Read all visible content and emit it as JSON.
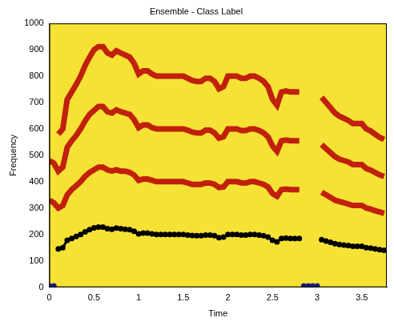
{
  "chart_data": {
    "type": "line",
    "title": "Ensemble - Class Label",
    "x_label": "Time",
    "y_label": "Frequency",
    "x": [
      0,
      0.05,
      0.1,
      0.15,
      0.2,
      0.25,
      0.3,
      0.35,
      0.4,
      0.45,
      0.5,
      0.55,
      0.6,
      0.65,
      0.7,
      0.75,
      0.8,
      0.85,
      0.9,
      0.95,
      1.0,
      1.05,
      1.1,
      1.15,
      1.2,
      1.25,
      1.3,
      1.35,
      1.4,
      1.45,
      1.5,
      1.55,
      1.6,
      1.65,
      1.7,
      1.75,
      1.8,
      1.85,
      1.9,
      1.95,
      2.0,
      2.05,
      2.1,
      2.15,
      2.2,
      2.25,
      2.3,
      2.35,
      2.4,
      2.45,
      2.5,
      2.55,
      2.6,
      2.65,
      2.7,
      2.75,
      2.8,
      2.85,
      2.9,
      2.95,
      3.0,
      3.05,
      3.1,
      3.15,
      3.2,
      3.25,
      3.3,
      3.35,
      3.4,
      3.45,
      3.5,
      3.55,
      3.6,
      3.65,
      3.7,
      3.75
    ],
    "series": [
      {
        "color": "#c0200c",
        "marker": "none",
        "line_style": "solid",
        "values": [
          330,
          320,
          300,
          310,
          350,
          370,
          385,
          400,
          420,
          435,
          445,
          455,
          455,
          445,
          440,
          445,
          440,
          440,
          435,
          425,
          405,
          410,
          410,
          405,
          400,
          400,
          400,
          400,
          400,
          400,
          400,
          395,
          390,
          390,
          390,
          395,
          395,
          390,
          378,
          380,
          400,
          400,
          400,
          396,
          395,
          400,
          400,
          395,
          390,
          380,
          355,
          345,
          370,
          372,
          370,
          370,
          370,
          null,
          null,
          null,
          null,
          360,
          350,
          340,
          330,
          325,
          320,
          315,
          310,
          310,
          310,
          300,
          296,
          290,
          285,
          280
        ]
      },
      {
        "color": "#c0200c",
        "marker": "none",
        "line_style": "solid",
        "values": [
          480,
          470,
          440,
          455,
          530,
          555,
          575,
          600,
          630,
          655,
          670,
          685,
          685,
          665,
          660,
          672,
          665,
          660,
          655,
          635,
          605,
          615,
          615,
          605,
          600,
          600,
          600,
          600,
          600,
          600,
          600,
          595,
          588,
          585,
          585,
          595,
          595,
          585,
          565,
          570,
          600,
          600,
          600,
          594,
          594,
          600,
          600,
          594,
          585,
          570,
          535,
          515,
          555,
          558,
          555,
          555,
          555,
          null,
          null,
          null,
          null,
          540,
          525,
          510,
          495,
          485,
          480,
          475,
          465,
          465,
          465,
          450,
          444,
          435,
          426,
          420
        ]
      },
      {
        "color": "#c0200c",
        "marker": "none",
        "line_style": "solid",
        "values": [
          null,
          null,
          580,
          600,
          712,
          740,
          768,
          800,
          840,
          872,
          900,
          912,
          912,
          888,
          880,
          896,
          888,
          880,
          872,
          848,
          808,
          820,
          820,
          808,
          800,
          800,
          800,
          800,
          800,
          800,
          800,
          792,
          784,
          780,
          780,
          792,
          792,
          780,
          752,
          760,
          800,
          800,
          800,
          792,
          792,
          800,
          800,
          792,
          780,
          760,
          712,
          690,
          740,
          744,
          740,
          740,
          740,
          null,
          null,
          null,
          null,
          720,
          700,
          680,
          660,
          648,
          640,
          632,
          620,
          620,
          620,
          600,
          592,
          580,
          568,
          560
        ]
      },
      {
        "color": "#000000",
        "marker": "circle",
        "line_style": "solid",
        "values": [
          null,
          null,
          145,
          150,
          178,
          185,
          192,
          200,
          210,
          218,
          225,
          228,
          228,
          222,
          220,
          224,
          222,
          220,
          218,
          212,
          202,
          205,
          205,
          202,
          200,
          200,
          200,
          200,
          200,
          200,
          200,
          198,
          196,
          195,
          195,
          198,
          198,
          195,
          188,
          190,
          200,
          200,
          200,
          198,
          198,
          200,
          200,
          198,
          195,
          190,
          178,
          172,
          185,
          186,
          185,
          185,
          185,
          null,
          null,
          null,
          null,
          180,
          175,
          170,
          165,
          162,
          160,
          158,
          155,
          155,
          155,
          150,
          148,
          145,
          142,
          140
        ]
      },
      {
        "color": "#1a1a80",
        "marker": "circle",
        "line_style": "solid",
        "values": [
          5,
          5,
          null,
          null,
          null,
          null,
          null,
          null,
          null,
          null,
          null,
          null,
          null,
          null,
          null,
          null,
          null,
          null,
          null,
          null,
          null,
          null,
          null,
          null,
          null,
          null,
          null,
          null,
          null,
          null,
          null,
          null,
          null,
          null,
          null,
          null,
          null,
          null,
          null,
          null,
          null,
          null,
          null,
          null,
          null,
          null,
          null,
          null,
          null,
          null,
          null,
          null,
          null,
          null,
          null,
          null,
          null,
          5,
          5,
          5,
          5,
          null,
          null,
          null,
          null,
          null,
          null,
          null,
          null,
          null,
          null,
          null,
          null,
          null,
          null,
          null
        ]
      }
    ],
    "xlim": [
      0,
      3.78
    ],
    "xticks": [
      0,
      0.5,
      1,
      1.5,
      2,
      2.5,
      3,
      3.5
    ],
    "ylim": [
      0,
      1000
    ],
    "yticks": [
      0,
      100,
      200,
      300,
      400,
      500,
      600,
      700,
      800,
      900,
      1000
    ],
    "grid": false
  }
}
